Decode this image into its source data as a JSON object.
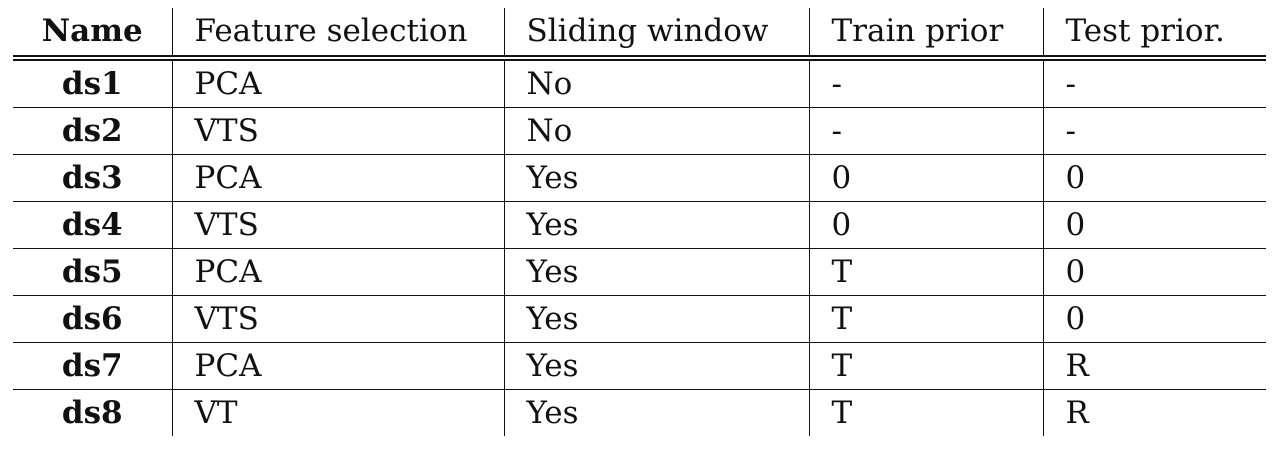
{
  "table": {
    "columns": [
      "Name",
      "Feature selection",
      "Sliding window",
      "Train prior",
      "Test prior."
    ],
    "rows": [
      [
        "ds1",
        "PCA",
        "No",
        "-",
        "-"
      ],
      [
        "ds2",
        "VTS",
        "No",
        "-",
        "-"
      ],
      [
        "ds3",
        "PCA",
        "Yes",
        "0",
        "0"
      ],
      [
        "ds4",
        "VTS",
        "Yes",
        "0",
        "0"
      ],
      [
        "ds5",
        "PCA",
        "Yes",
        "T",
        "0"
      ],
      [
        "ds6",
        "VTS",
        "Yes",
        "T",
        "0"
      ],
      [
        "ds7",
        "PCA",
        "Yes",
        "T",
        "R"
      ],
      [
        "ds8",
        "VT",
        "Yes",
        "T",
        "R"
      ]
    ]
  }
}
